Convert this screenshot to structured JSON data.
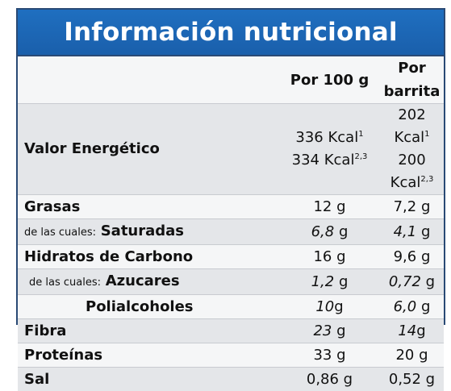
{
  "title": "Información nutricional",
  "columns": [
    "Por 100 g",
    "Por barrita"
  ],
  "energy": {
    "label": "Valor Energético",
    "per100_a": "336 Kcal",
    "per100_a_sup": "1",
    "per100_b": "334 Kcal",
    "per100_b_sup": "2,3",
    "bar_a": "202 Kcal",
    "bar_a_sup": "1",
    "bar_b": "200 Kcal",
    "bar_b_sup": "2,3"
  },
  "rows": [
    {
      "label": "Grasas",
      "per100": "12 g",
      "bar": "7,2 g"
    },
    {
      "prefix": "de las cuales:",
      "label": "Saturadas",
      "per100_num": "6,8",
      "per100_unit": " g",
      "bar_num": "4,1",
      "bar_unit": " g"
    },
    {
      "label": "Hidratos de Carbono",
      "per100": "16 g",
      "bar": "9,6 g"
    },
    {
      "prefix": "de las cuales:",
      "label": "Azucares",
      "per100_num": "1,2",
      "per100_unit": " g",
      "bar_num": "0,72",
      "bar_unit": " g"
    },
    {
      "label": "Polialcoholes",
      "per100_num": "10",
      "per100_unit": "g",
      "bar_num": "6,0",
      "bar_unit": " g"
    },
    {
      "label": "Fibra",
      "per100_num": "23",
      "per100_unit": " g",
      "bar_num": "14",
      "bar_unit": "g"
    },
    {
      "label": "Proteínas",
      "per100": "33 g",
      "bar": "20 g"
    },
    {
      "label": "Sal",
      "per100": "0,86 g",
      "bar": "0,52 g"
    }
  ]
}
